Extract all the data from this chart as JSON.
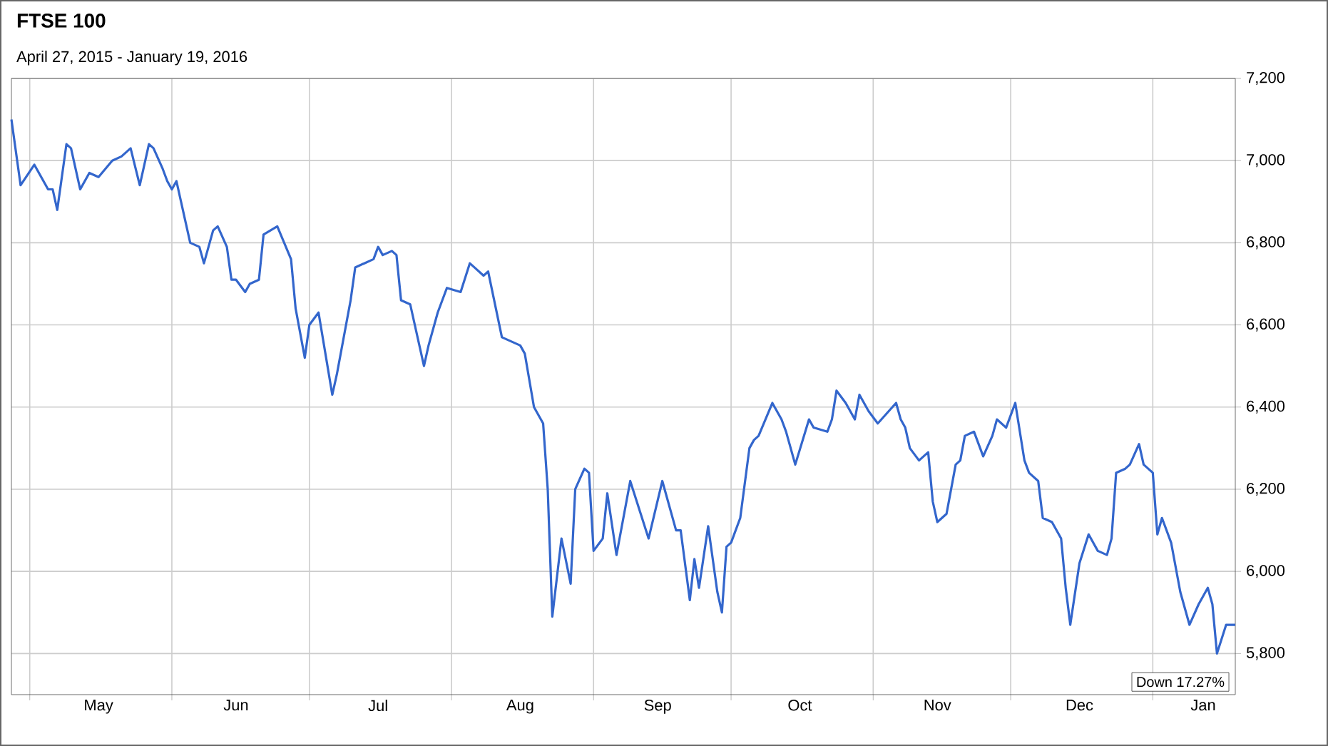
{
  "chart_data": {
    "type": "line",
    "title": "FTSE 100",
    "subtitle": "April 27, 2015 - January 19, 2016",
    "annotations": [
      "Down 17.27%"
    ],
    "x": [
      "2015-04-27",
      "2015-04-29",
      "2015-05-02",
      "2015-05-05",
      "2015-05-06",
      "2015-05-07",
      "2015-05-09",
      "2015-05-10",
      "2015-05-12",
      "2015-05-14",
      "2015-05-16",
      "2015-05-19",
      "2015-05-21",
      "2015-05-23",
      "2015-05-25",
      "2015-05-27",
      "2015-05-28",
      "2015-05-30",
      "2015-05-31",
      "2015-06-01",
      "2015-06-02",
      "2015-06-04",
      "2015-06-05",
      "2015-06-07",
      "2015-06-08",
      "2015-06-10",
      "2015-06-11",
      "2015-06-13",
      "2015-06-14",
      "2015-06-15",
      "2015-06-17",
      "2015-06-18",
      "2015-06-20",
      "2015-06-21",
      "2015-06-24",
      "2015-06-27",
      "2015-06-28",
      "2015-06-30",
      "2015-07-01",
      "2015-07-03",
      "2015-07-06",
      "2015-07-07",
      "2015-07-10",
      "2015-07-11",
      "2015-07-13",
      "2015-07-15",
      "2015-07-16",
      "2015-07-17",
      "2015-07-19",
      "2015-07-20",
      "2015-07-21",
      "2015-07-23",
      "2015-07-26",
      "2015-07-27",
      "2015-07-29",
      "2015-07-31",
      "2015-08-03",
      "2015-08-05",
      "2015-08-06",
      "2015-08-08",
      "2015-08-09",
      "2015-08-12",
      "2015-08-14",
      "2015-08-16",
      "2015-08-17",
      "2015-08-19",
      "2015-08-21",
      "2015-08-22",
      "2015-08-23",
      "2015-08-25",
      "2015-08-27",
      "2015-08-28",
      "2015-08-30",
      "2015-08-31",
      "2015-09-01",
      "2015-09-03",
      "2015-09-04",
      "2015-09-06",
      "2015-09-09",
      "2015-09-13",
      "2015-09-16",
      "2015-09-17",
      "2015-09-19",
      "2015-09-20",
      "2015-09-22",
      "2015-09-23",
      "2015-09-24",
      "2015-09-26",
      "2015-09-28",
      "2015-09-29",
      "2015-09-30",
      "2015-10-01",
      "2015-10-03",
      "2015-10-05",
      "2015-10-06",
      "2015-10-07",
      "2015-10-10",
      "2015-10-12",
      "2015-10-13",
      "2015-10-15",
      "2015-10-18",
      "2015-10-19",
      "2015-10-22",
      "2015-10-23",
      "2015-10-24",
      "2015-10-26",
      "2015-10-28",
      "2015-10-29",
      "2015-10-31",
      "2015-11-02",
      "2015-11-06",
      "2015-11-07",
      "2015-11-08",
      "2015-11-09",
      "2015-11-11",
      "2015-11-13",
      "2015-11-14",
      "2015-11-15",
      "2015-11-17",
      "2015-11-19",
      "2015-11-20",
      "2015-11-21",
      "2015-11-23",
      "2015-11-25",
      "2015-11-27",
      "2015-11-28",
      "2015-11-30",
      "2015-12-02",
      "2015-12-04",
      "2015-12-05",
      "2015-12-07",
      "2015-12-08",
      "2015-12-10",
      "2015-12-12",
      "2015-12-13",
      "2015-12-14",
      "2015-12-16",
      "2015-12-18",
      "2015-12-20",
      "2015-12-22",
      "2015-12-23",
      "2015-12-24",
      "2015-12-26",
      "2015-12-27",
      "2015-12-29",
      "2015-12-30",
      "2016-01-01",
      "2016-01-02",
      "2016-01-03",
      "2016-01-05",
      "2016-01-07",
      "2016-01-09",
      "2016-01-11",
      "2016-01-13",
      "2016-01-14",
      "2016-01-15",
      "2016-01-17",
      "2016-01-19"
    ],
    "series": [
      {
        "color": "#3366cc",
        "values": [
          7100,
          6940,
          6990,
          6930,
          6930,
          6880,
          7040,
          7030,
          6930,
          6970,
          6960,
          7000,
          7010,
          7030,
          6940,
          7040,
          7030,
          6980,
          6950,
          6930,
          6950,
          6850,
          6800,
          6790,
          6750,
          6830,
          6840,
          6790,
          6710,
          6710,
          6680,
          6700,
          6710,
          6820,
          6840,
          6760,
          6640,
          6520,
          6600,
          6630,
          6430,
          6480,
          6660,
          6740,
          6750,
          6760,
          6790,
          6770,
          6780,
          6770,
          6660,
          6650,
          6500,
          6550,
          6630,
          6690,
          6680,
          6750,
          6740,
          6720,
          6730,
          6570,
          6560,
          6550,
          6530,
          6400,
          6360,
          6200,
          5890,
          6080,
          5970,
          6200,
          6250,
          6240,
          6050,
          6080,
          6190,
          6040,
          6220,
          6080,
          6220,
          6180,
          6100,
          6100,
          5930,
          6030,
          5960,
          6110,
          5950,
          5900,
          6060,
          6070,
          6130,
          6300,
          6320,
          6330,
          6410,
          6370,
          6340,
          6260,
          6370,
          6350,
          6340,
          6370,
          6440,
          6410,
          6370,
          6430,
          6390,
          6360,
          6410,
          6370,
          6350,
          6300,
          6270,
          6290,
          6170,
          6120,
          6140,
          6260,
          6270,
          6330,
          6340,
          6280,
          6330,
          6370,
          6350,
          6410,
          6270,
          6240,
          6220,
          6130,
          6120,
          6080,
          5960,
          5870,
          6020,
          6090,
          6050,
          6040,
          6080,
          6240,
          6250,
          6260,
          6310,
          6260,
          6240,
          6090,
          6130,
          6070,
          5950,
          5870,
          5920,
          5960,
          5920,
          5800,
          5870,
          5870
        ]
      }
    ],
    "xlim": [
      "2015-04-27",
      "2016-01-19"
    ],
    "xticks": [
      {
        "value": "2015-05-01",
        "label": null
      },
      {
        "value": "2015-05-16",
        "label": "May"
      },
      {
        "value": "2015-06-01",
        "label": null
      },
      {
        "value": "2015-06-15",
        "label": "Jun"
      },
      {
        "value": "2015-07-01",
        "label": null
      },
      {
        "value": "2015-07-16",
        "label": "Jul"
      },
      {
        "value": "2015-08-01",
        "label": null
      },
      {
        "value": "2015-08-16",
        "label": "Aug"
      },
      {
        "value": "2015-09-01",
        "label": null
      },
      {
        "value": "2015-09-15",
        "label": "Sep"
      },
      {
        "value": "2015-10-01",
        "label": null
      },
      {
        "value": "2015-10-16",
        "label": "Oct"
      },
      {
        "value": "2015-11-01",
        "label": null
      },
      {
        "value": "2015-11-15",
        "label": "Nov"
      },
      {
        "value": "2015-12-01",
        "label": null
      },
      {
        "value": "2015-12-16",
        "label": "Dec"
      },
      {
        "value": "2016-01-01",
        "label": null
      },
      {
        "value": "2016-01-12",
        "label": "Jan"
      }
    ],
    "ylim": [
      5700,
      7200
    ],
    "yticks": [
      {
        "value": 5800,
        "label": "5,800"
      },
      {
        "value": 6000,
        "label": "6,000"
      },
      {
        "value": 6200,
        "label": "6,200"
      },
      {
        "value": 6400,
        "label": "6,400"
      },
      {
        "value": 6600,
        "label": "6,600"
      },
      {
        "value": 6800,
        "label": "6,800"
      },
      {
        "value": 7000,
        "label": "7,000"
      },
      {
        "value": 7200,
        "label": "7,200"
      }
    ],
    "grid": true,
    "marker": "none",
    "line_style": "solid"
  }
}
